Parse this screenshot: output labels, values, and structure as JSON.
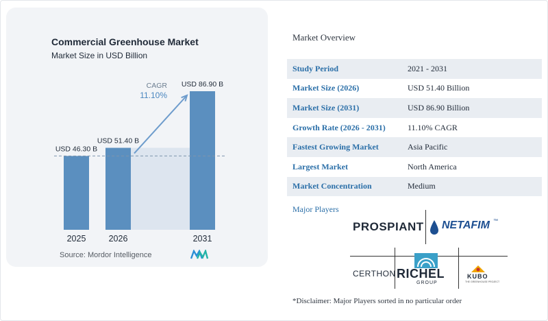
{
  "chart_data": {
    "type": "bar",
    "title": "Commercial Greenhouse Market",
    "subtitle": "Market Size in USD Billion",
    "categories": [
      "2025",
      "2026",
      "2031"
    ],
    "values": [
      46.3,
      51.4,
      86.9
    ],
    "value_labels": [
      "USD 46.30 B",
      "USD 51.40 B",
      "USD 86.90 B"
    ],
    "cagr_label": "CAGR",
    "cagr_value": "11.10%",
    "colors": {
      "bar": "#5b8fbf",
      "bar_top": "#4a7fb0",
      "shade": "#dde5ef",
      "arrow": "#6e9ccc",
      "dashed": "#7e95ad"
    }
  },
  "source": "Source: Mordor Intelligence",
  "overview": {
    "title": "Market Overview",
    "rows": [
      {
        "key": "Study Period",
        "value": "2021 - 2031"
      },
      {
        "key": "Market Size (2026)",
        "value": "USD 51.40 Billion"
      },
      {
        "key": "Market Size (2031)",
        "value": "USD 86.90 Billion"
      },
      {
        "key": "Growth Rate (2026 - 2031)",
        "value": "11.10% CAGR"
      },
      {
        "key": "Fastest Growing Market",
        "value": "Asia Pacific"
      },
      {
        "key": "Largest Market",
        "value": "North America"
      },
      {
        "key": "Market Concentration",
        "value": "Medium"
      }
    ]
  },
  "players": {
    "title": "Major Players",
    "logos": {
      "prospiant": "PROSPIANT",
      "netafim": "NETAFIM",
      "netafim_tm": "™",
      "certhon": "CERTHON",
      "richel": "RICHEL",
      "richel_sub": "GROUP",
      "kubo": "KUBO",
      "kubo_sub": "THE GREENHOUSE PROJECT"
    }
  },
  "disclaimer": "*Disclaimer: Major Players sorted in no particular order"
}
